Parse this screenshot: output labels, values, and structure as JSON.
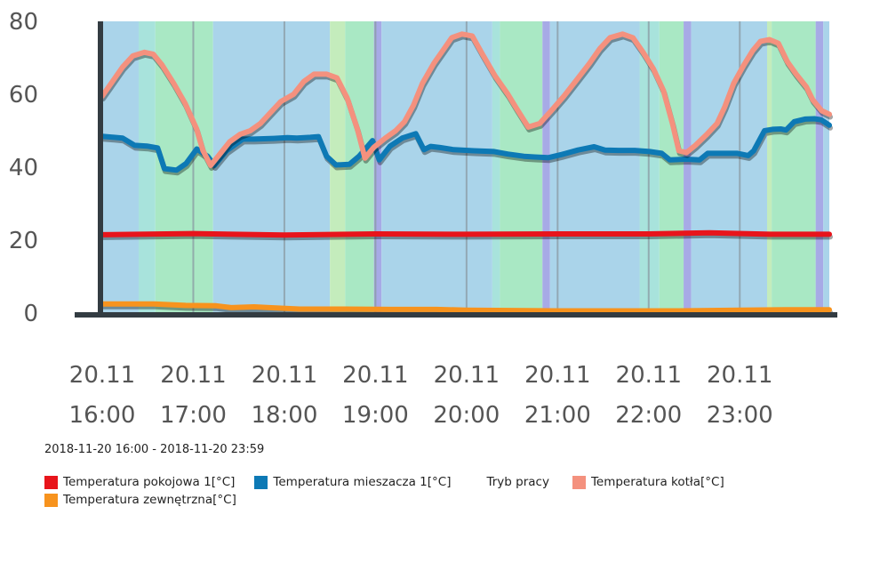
{
  "range_label": "2018-11-20 16:00 - 2018-11-20 23:59",
  "chart_data": {
    "type": "line",
    "ylim": [
      0,
      80
    ],
    "yticks": [
      0,
      20,
      40,
      60,
      80
    ],
    "xticks": [
      {
        "t": 0,
        "date": "20.11",
        "time": "16:00"
      },
      {
        "t": 60,
        "date": "20.11",
        "time": "17:00"
      },
      {
        "t": 120,
        "date": "20.11",
        "time": "18:00"
      },
      {
        "t": 180,
        "date": "20.11",
        "time": "19:00"
      },
      {
        "t": 240,
        "date": "20.11",
        "time": "20:00"
      },
      {
        "t": 300,
        "date": "20.11",
        "time": "21:00"
      },
      {
        "t": 360,
        "date": "20.11",
        "time": "22:00"
      },
      {
        "t": 420,
        "date": "20.11",
        "time": "23:00"
      }
    ],
    "tmax": 479,
    "mode_bands": [
      {
        "t0": 0,
        "t1": 24,
        "color": "#aad4ea"
      },
      {
        "t0": 24,
        "t1": 35,
        "color": "#a8e3dc"
      },
      {
        "t0": 35,
        "t1": 73,
        "color": "#a9e8c4"
      },
      {
        "t0": 73,
        "t1": 150,
        "color": "#aad4ea"
      },
      {
        "t0": 150,
        "t1": 160,
        "color": "#c4ecbc"
      },
      {
        "t0": 160,
        "t1": 179,
        "color": "#a9e8c4"
      },
      {
        "t0": 179,
        "t1": 184,
        "color": "#a7aae6"
      },
      {
        "t0": 184,
        "t1": 257,
        "color": "#aad4ea"
      },
      {
        "t0": 257,
        "t1": 262,
        "color": "#a8e3dc"
      },
      {
        "t0": 262,
        "t1": 290,
        "color": "#a9e8c4"
      },
      {
        "t0": 290,
        "t1": 295,
        "color": "#a7aae6"
      },
      {
        "t0": 295,
        "t1": 354,
        "color": "#aad4ea"
      },
      {
        "t0": 354,
        "t1": 367,
        "color": "#a8e3dc"
      },
      {
        "t0": 367,
        "t1": 383,
        "color": "#a9e8c4"
      },
      {
        "t0": 383,
        "t1": 388,
        "color": "#a7aae6"
      },
      {
        "t0": 388,
        "t1": 438,
        "color": "#aad4ea"
      },
      {
        "t0": 438,
        "t1": 441,
        "color": "#c4ecbc"
      },
      {
        "t0": 441,
        "t1": 470,
        "color": "#a9e8c4"
      },
      {
        "t0": 470,
        "t1": 475,
        "color": "#a7aae6"
      },
      {
        "t0": 475,
        "t1": 479,
        "color": "#aad4ea"
      }
    ],
    "series": [
      {
        "name": "Temperatura pokojowa 1[°C]",
        "color": "#e8141b",
        "points": [
          [
            0,
            21.5
          ],
          [
            60,
            21.8
          ],
          [
            120,
            21.4
          ],
          [
            180,
            21.7
          ],
          [
            240,
            21.6
          ],
          [
            300,
            21.7
          ],
          [
            360,
            21.7
          ],
          [
            400,
            22
          ],
          [
            440,
            21.6
          ],
          [
            479,
            21.6
          ]
        ]
      },
      {
        "name": "Temperatura mieszacza 1[°C]",
        "color": "#0d79b5",
        "points": [
          [
            0,
            48.5
          ],
          [
            15,
            48
          ],
          [
            24,
            46
          ],
          [
            33,
            45.8
          ],
          [
            41,
            45.3
          ],
          [
            46,
            39.6
          ],
          [
            55,
            39.2
          ],
          [
            62,
            41
          ],
          [
            70,
            45
          ],
          [
            78,
            43
          ],
          [
            83,
            40.5
          ],
          [
            92,
            44.5
          ],
          [
            104,
            47.7
          ],
          [
            112,
            47.7
          ],
          [
            127,
            47.9
          ],
          [
            137,
            48.1
          ],
          [
            144,
            48
          ],
          [
            154,
            48.2
          ],
          [
            160,
            48.4
          ],
          [
            166,
            43
          ],
          [
            173,
            40.6
          ],
          [
            183,
            40.8
          ],
          [
            190,
            43
          ],
          [
            200,
            47.3
          ],
          [
            205,
            42
          ],
          [
            213,
            45.8
          ],
          [
            222,
            48
          ],
          [
            232,
            49.2
          ],
          [
            238,
            44.8
          ],
          [
            243,
            45.7
          ],
          [
            250,
            45.4
          ],
          [
            260,
            44.8
          ],
          [
            275,
            44.5
          ],
          [
            290,
            44.3
          ],
          [
            300,
            43.6
          ],
          [
            312,
            43
          ],
          [
            320,
            42.8
          ],
          [
            330,
            42.6
          ],
          [
            340,
            43.5
          ],
          [
            352,
            44.7
          ],
          [
            364,
            45.6
          ],
          [
            372,
            44.7
          ],
          [
            382,
            44.6
          ],
          [
            394,
            44.6
          ],
          [
            405,
            44.3
          ],
          [
            414,
            43.8
          ],
          [
            420,
            42
          ],
          [
            432,
            42.2
          ],
          [
            442,
            42
          ],
          [
            448,
            43.8
          ],
          [
            458,
            43.8
          ],
          [
            470,
            43.8
          ],
          [
            478,
            43.2
          ],
          [
            482,
            44.5
          ],
          [
            490,
            50
          ],
          [
            496,
            50.4
          ],
          [
            502,
            50.5
          ],
          [
            506,
            50.2
          ],
          [
            512,
            52.5
          ],
          [
            520,
            53.2
          ],
          [
            527,
            53.3
          ],
          [
            532,
            53
          ],
          [
            538,
            51.5
          ]
        ]
      },
      {
        "name": "Tryb pracy",
        "color": "",
        "points": []
      },
      {
        "name": "Temperatura kotła[°C]",
        "color": "#f4917e",
        "points": [
          [
            0,
            59.5
          ],
          [
            8,
            63.5
          ],
          [
            16,
            67.5
          ],
          [
            24,
            70.5
          ],
          [
            33,
            71.5
          ],
          [
            40,
            71
          ],
          [
            47,
            68
          ],
          [
            56,
            63
          ],
          [
            65,
            57.5
          ],
          [
            74,
            50.5
          ],
          [
            79,
            44.5
          ],
          [
            85,
            40.5
          ],
          [
            92,
            43.5
          ],
          [
            100,
            47
          ],
          [
            108,
            49
          ],
          [
            116,
            50
          ],
          [
            124,
            52
          ],
          [
            132,
            55
          ],
          [
            140,
            58
          ],
          [
            150,
            60
          ],
          [
            158,
            63.5
          ],
          [
            166,
            65.5
          ],
          [
            176,
            65.5
          ],
          [
            184,
            64.5
          ],
          [
            192,
            59
          ],
          [
            200,
            50.5
          ],
          [
            206,
            42.5
          ],
          [
            213,
            45.5
          ],
          [
            222,
            48
          ],
          [
            230,
            50
          ],
          [
            237,
            52.5
          ],
          [
            244,
            57
          ],
          [
            251,
            63
          ],
          [
            260,
            68.5
          ],
          [
            268,
            72.5
          ],
          [
            274,
            75.5
          ],
          [
            282,
            76.5
          ],
          [
            290,
            76
          ],
          [
            298,
            71
          ],
          [
            308,
            65
          ],
          [
            318,
            60
          ],
          [
            325,
            56
          ],
          [
            334,
            51
          ],
          [
            343,
            52
          ],
          [
            352,
            55.5
          ],
          [
            362,
            59.5
          ],
          [
            372,
            64
          ],
          [
            382,
            68.5
          ],
          [
            390,
            72.5
          ],
          [
            398,
            75.5
          ],
          [
            408,
            76.5
          ],
          [
            416,
            75.5
          ],
          [
            424,
            71.5
          ],
          [
            432,
            67
          ],
          [
            440,
            61
          ],
          [
            447,
            52
          ],
          [
            452,
            44.5
          ],
          [
            458,
            44
          ],
          [
            465,
            46
          ],
          [
            474,
            49
          ],
          [
            482,
            52
          ],
          [
            488,
            56.5
          ],
          [
            495,
            63
          ],
          [
            503,
            68
          ],
          [
            510,
            72
          ],
          [
            516,
            74.5
          ],
          [
            523,
            75
          ],
          [
            530,
            74
          ],
          [
            537,
            69
          ],
          [
            544,
            65.5
          ],
          [
            552,
            62
          ],
          [
            557,
            58.5
          ],
          [
            564,
            55.5
          ],
          [
            570,
            54.5
          ]
        ]
      },
      {
        "name": "Temperatura zewnętrzna[°C]",
        "color": "#f7931e",
        "points": [
          [
            0,
            2.5
          ],
          [
            20,
            2.5
          ],
          [
            34,
            2.5
          ],
          [
            55,
            2.1
          ],
          [
            75,
            2
          ],
          [
            85,
            1.5
          ],
          [
            100,
            1.7
          ],
          [
            110,
            1.5
          ],
          [
            130,
            1.1
          ],
          [
            160,
            1.1
          ],
          [
            190,
            1.0
          ],
          [
            220,
            1.0
          ],
          [
            240,
            0.8
          ],
          [
            270,
            0.7
          ],
          [
            300,
            0.6
          ],
          [
            340,
            0.6
          ],
          [
            380,
            0.6
          ],
          [
            420,
            0.8
          ],
          [
            450,
            0.9
          ],
          [
            479,
            0.9
          ]
        ]
      }
    ]
  }
}
